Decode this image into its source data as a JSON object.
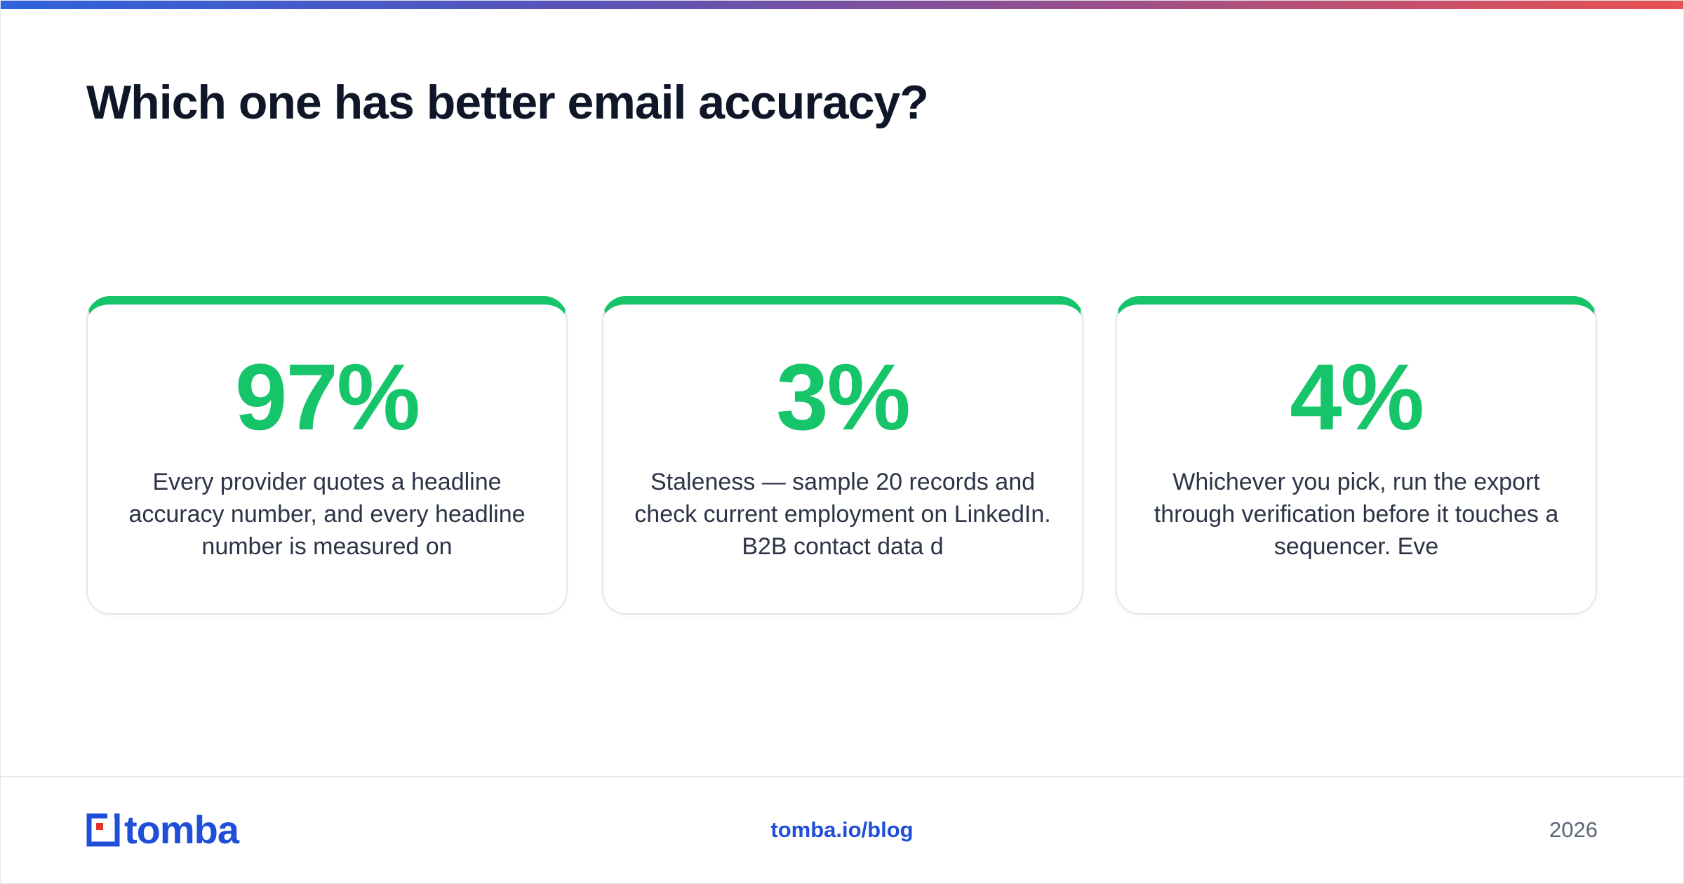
{
  "header": {
    "title": "Which one has better email accuracy?"
  },
  "colors": {
    "accent": "#16c46a",
    "brand": "#1f4fd8",
    "heading": "#0e1628"
  },
  "cards": [
    {
      "stat": "97%",
      "text": "Every provider quotes a headline accuracy number, and every headline number is measured on"
    },
    {
      "stat": "3%",
      "text": "Staleness — sample 20 records and check current employment on LinkedIn. B2B contact data d"
    },
    {
      "stat": "4%",
      "text": "Whichever you pick, run the export through verification before it touches a sequencer. Eve"
    }
  ],
  "footer": {
    "logo_text": "tomba",
    "logo_icon": "tomba-logo-icon",
    "link": "tomba.io/blog",
    "year": "2026"
  }
}
